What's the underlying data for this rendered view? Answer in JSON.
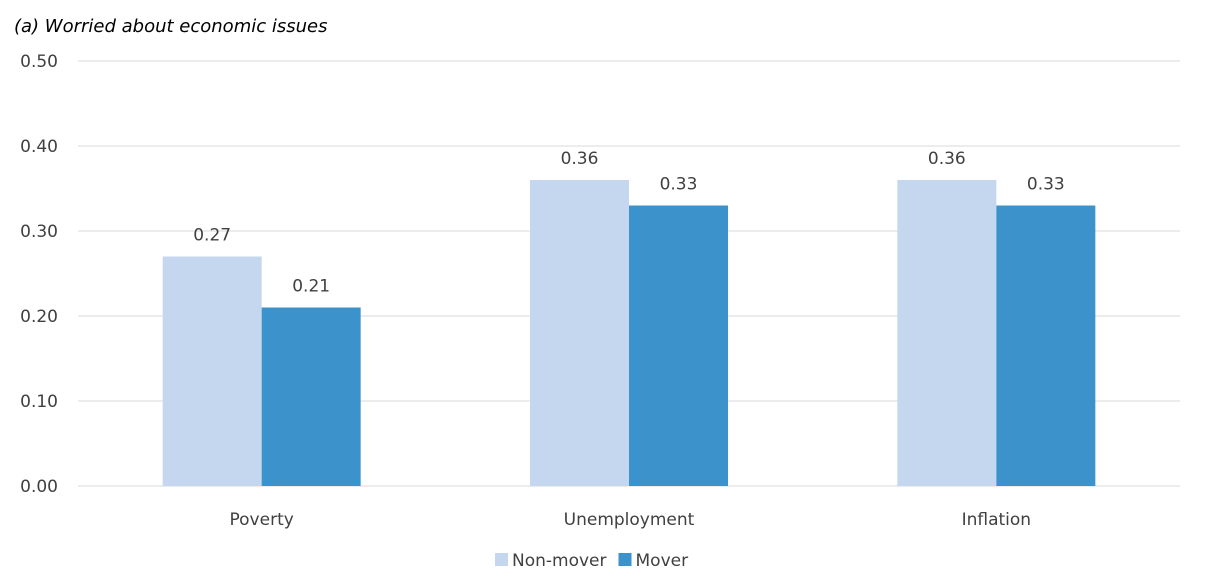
{
  "chart_data": {
    "type": "bar",
    "title": "(a)   Worried about economic issues",
    "categories": [
      "Poverty",
      "Unemployment",
      "Inflation"
    ],
    "series": [
      {
        "name": "Non-mover",
        "values": [
          0.27,
          0.36,
          0.36
        ],
        "labels": [
          "0.27",
          "0.36",
          "0.36"
        ],
        "color": "#c5d7ee"
      },
      {
        "name": "Mover",
        "values": [
          0.21,
          0.33,
          0.33
        ],
        "labels": [
          "0.21",
          "0.33",
          "0.33"
        ],
        "color": "#3c93cc"
      }
    ],
    "yticks": [
      0.0,
      0.1,
      0.2,
      0.3,
      0.4,
      0.5
    ],
    "ytick_labels": [
      "0.00",
      "0.10",
      "0.20",
      "0.30",
      "0.40",
      "0.50"
    ],
    "ylim": [
      0,
      0.5
    ],
    "xlabel": "",
    "ylabel": "",
    "grid": true,
    "legend": "bottom-center"
  }
}
